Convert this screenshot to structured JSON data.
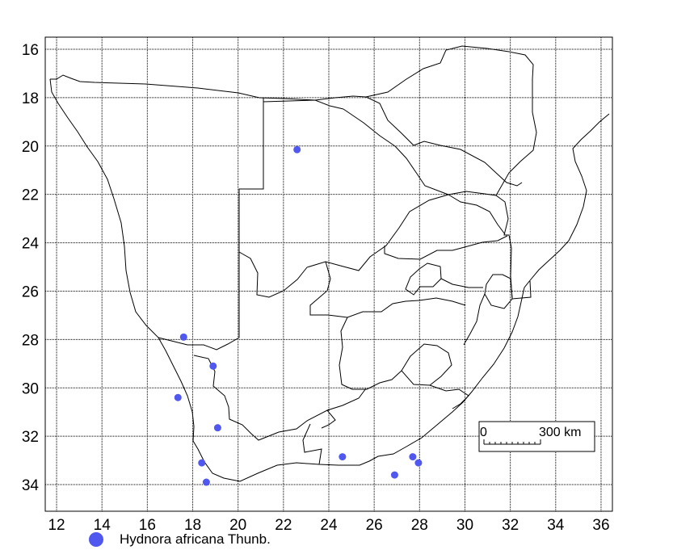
{
  "map": {
    "lon_range": [
      11.5,
      36.5
    ],
    "lat_range": [
      15.5,
      35.1
    ],
    "x_ticks": [
      12,
      14,
      16,
      18,
      20,
      22,
      24,
      26,
      28,
      30,
      32,
      34,
      36
    ],
    "y_ticks": [
      16,
      18,
      20,
      22,
      24,
      26,
      28,
      30,
      32,
      34
    ],
    "grid": true,
    "point_color": "#5058f0",
    "points": [
      {
        "lon": 22.6,
        "lat": 20.15
      },
      {
        "lon": 17.6,
        "lat": 27.9
      },
      {
        "lon": 18.9,
        "lat": 29.1
      },
      {
        "lon": 17.35,
        "lat": 30.4
      },
      {
        "lon": 19.1,
        "lat": 31.65
      },
      {
        "lon": 18.4,
        "lat": 33.1
      },
      {
        "lon": 18.6,
        "lat": 33.9
      },
      {
        "lon": 24.6,
        "lat": 32.85
      },
      {
        "lon": 26.9,
        "lat": 33.6
      },
      {
        "lon": 27.7,
        "lat": 32.85
      },
      {
        "lon": 27.95,
        "lat": 33.1
      }
    ],
    "scale_bar": {
      "zero": "0",
      "end": "300 km"
    }
  },
  "legend": {
    "label": "Hydnora africana Thunb.",
    "color": "#5058f0"
  }
}
